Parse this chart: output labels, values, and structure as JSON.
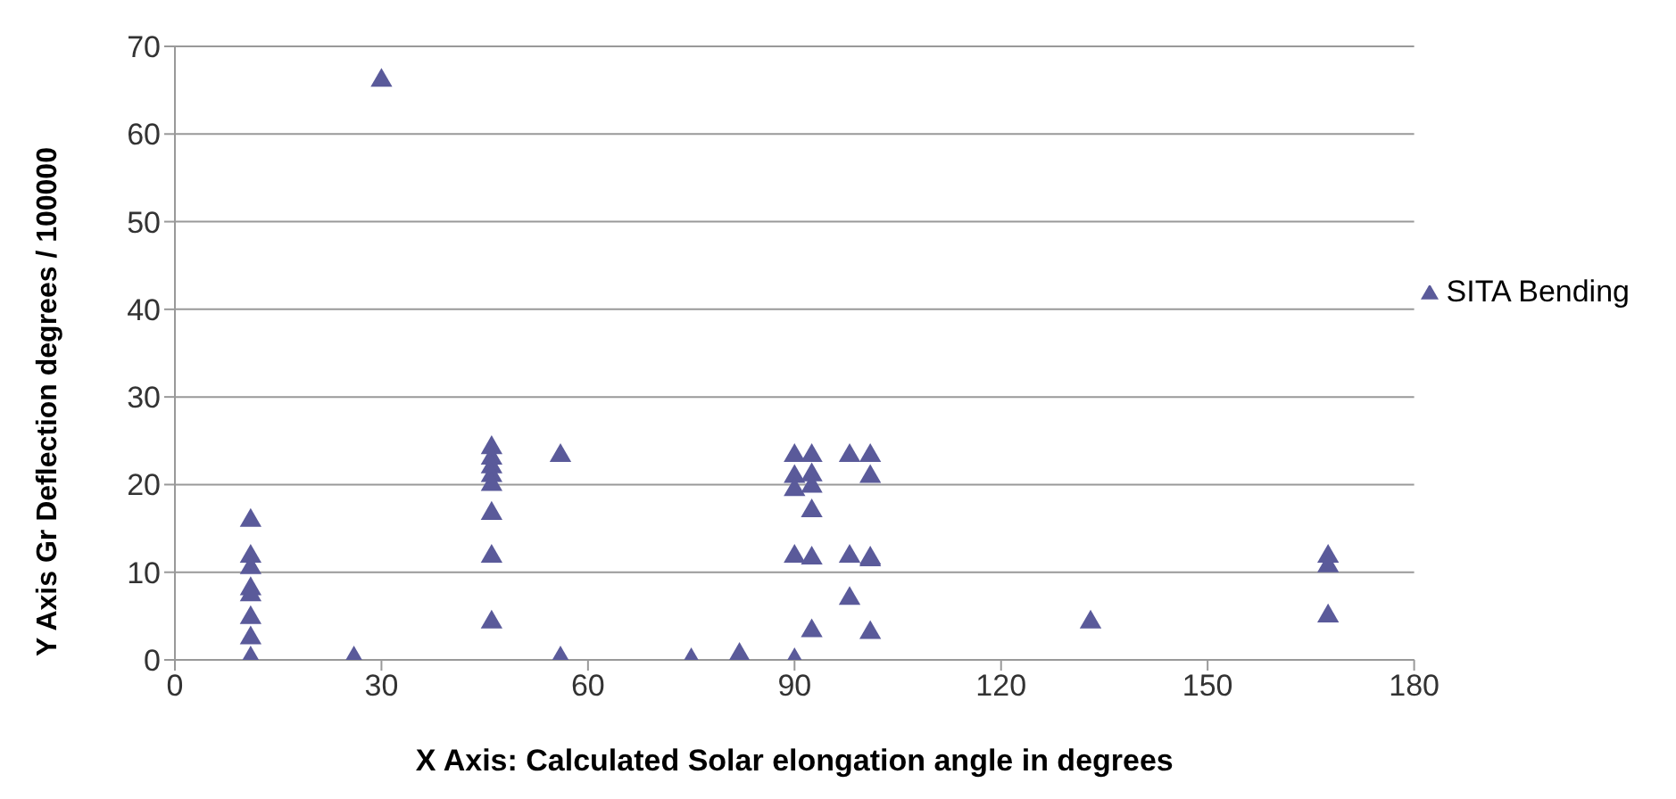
{
  "chart_data": {
    "type": "scatter",
    "xlabel": "X Axis: Calculated Solar elongation angle in degrees",
    "ylabel": "Y Axis Gr Deflection  degrees / 100000",
    "series": [
      {
        "name": "SITA  Bending",
        "color": "#5a5a9a",
        "x": [
          11,
          11,
          11,
          11,
          11,
          11,
          11,
          11,
          26,
          30,
          46,
          46,
          46,
          46,
          46,
          46,
          46,
          46,
          56,
          56,
          75,
          82,
          90,
          90,
          90,
          90,
          90,
          92.5,
          92.5,
          92.5,
          92.5,
          92.5,
          92.5,
          98,
          98,
          98,
          101,
          101,
          101,
          101,
          101,
          133,
          167.5,
          167.5,
          167.5
        ],
        "values": [
          15.9,
          11.8,
          10.5,
          8.1,
          7.4,
          4.8,
          2.5,
          0.2,
          0.2,
          66.1,
          24.2,
          23,
          22,
          21,
          20,
          16.7,
          11.8,
          4.3,
          23.3,
          0.2,
          0,
          0.6,
          23.3,
          20.9,
          19.4,
          11.8,
          0,
          23.3,
          21.1,
          19.8,
          17,
          11.6,
          3.3,
          23.3,
          11.8,
          7,
          23.3,
          20.9,
          11.6,
          11.4,
          3.1,
          4.3,
          11.8,
          10.7,
          5
        ]
      }
    ],
    "xlim": [
      0,
      180
    ],
    "xticks": [
      0,
      30,
      60,
      90,
      120,
      150,
      180
    ],
    "ylim": [
      0,
      70
    ],
    "yticks": [
      0,
      10,
      20,
      30,
      40,
      50,
      60,
      70
    ],
    "grid": "y",
    "legend": "right",
    "marker": "triangle"
  }
}
